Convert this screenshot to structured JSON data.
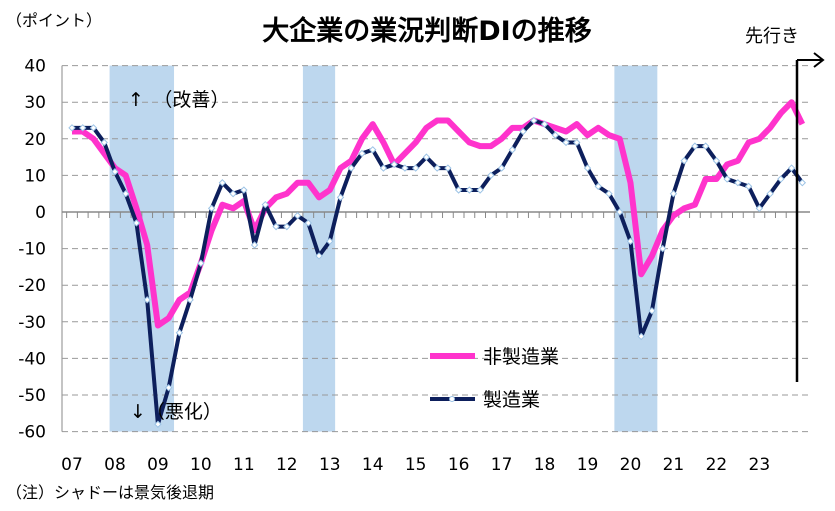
{
  "chart_data": {
    "type": "line",
    "title": "大企業の業況判断DIの推移",
    "ylabel": "（ポイント）",
    "ylim": [
      -60,
      40
    ],
    "yticks": [
      40,
      30,
      20,
      10,
      0,
      -10,
      -20,
      -30,
      -40,
      -50,
      -60
    ],
    "x_start": "2007Q1",
    "x_labels": [
      "07",
      "08",
      "09",
      "10",
      "11",
      "12",
      "13",
      "14",
      "15",
      "16",
      "17",
      "18",
      "19",
      "20",
      "21",
      "22",
      "23"
    ],
    "grid": true,
    "series": [
      {
        "name": "非製造業",
        "color": "#ff33cc",
        "values": [
          22,
          22,
          20,
          16,
          12,
          10,
          1,
          -9,
          -31,
          -29,
          -24,
          -22,
          -14,
          -5,
          2,
          1,
          3,
          -5,
          1,
          4,
          5,
          8,
          8,
          4,
          6,
          12,
          14,
          20,
          24,
          19,
          13,
          16,
          19,
          23,
          25,
          25,
          22,
          19,
          18,
          18,
          20,
          23,
          23,
          25,
          24,
          23,
          22,
          24,
          21,
          23,
          21,
          20,
          8,
          -17,
          -12,
          -5,
          -1,
          1,
          2,
          9,
          9,
          13,
          14,
          19,
          20,
          23,
          27,
          30,
          24
        ]
      },
      {
        "name": "製造業",
        "color": "#0d1f5c",
        "values": [
          23,
          23,
          23,
          19,
          11,
          5,
          -3,
          -24,
          -58,
          -48,
          -33,
          -24,
          -14,
          1,
          8,
          5,
          6,
          -9,
          2,
          -4,
          -4,
          -1,
          -3,
          -12,
          -8,
          4,
          12,
          16,
          17,
          12,
          13,
          12,
          12,
          15,
          12,
          12,
          6,
          6,
          6,
          10,
          12,
          17,
          22,
          25,
          24,
          21,
          19,
          19,
          12,
          7,
          5,
          0,
          -8,
          -34,
          -27,
          -10,
          5,
          14,
          18,
          18,
          14,
          9,
          8,
          7,
          1,
          5,
          9,
          12,
          8
        ]
      }
    ],
    "shaded_periods_quarter_index": [
      [
        3.5,
        9.5
      ],
      [
        21.5,
        24.5
      ],
      [
        50.5,
        54.5
      ]
    ],
    "annotations": {
      "up": "↑　（改善）",
      "down": "↓（悪化）",
      "forecast": "先行き"
    },
    "legend_position": "bottom-center",
    "note": "（注）シャドーは景気後退期"
  }
}
